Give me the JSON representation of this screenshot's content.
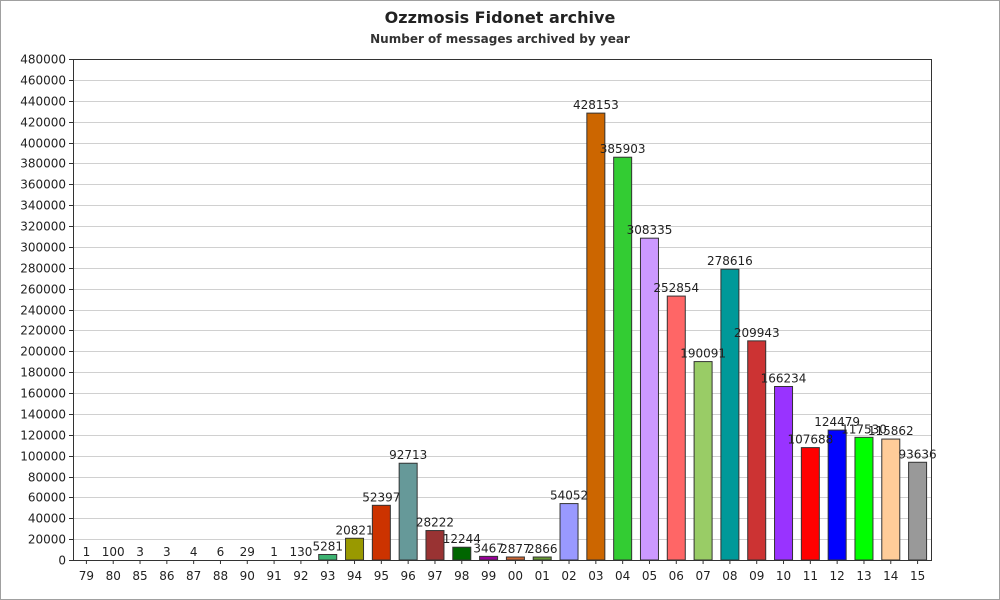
{
  "title": "Ozzmosis Fidonet archive",
  "subtitle": "Number of messages archived by year",
  "chart_data": {
    "type": "bar",
    "title": "Ozzmosis Fidonet archive",
    "subtitle": "Number of messages archived by year",
    "xlabel": "",
    "ylabel": "",
    "ylim": [
      0,
      480000
    ],
    "yticks": [
      0,
      20000,
      40000,
      60000,
      80000,
      100000,
      120000,
      140000,
      160000,
      180000,
      200000,
      220000,
      240000,
      260000,
      280000,
      300000,
      320000,
      340000,
      360000,
      380000,
      400000,
      420000,
      440000,
      460000,
      480000
    ],
    "grid": true,
    "categories": [
      "79",
      "80",
      "85",
      "86",
      "87",
      "88",
      "90",
      "91",
      "92",
      "93",
      "94",
      "95",
      "96",
      "97",
      "98",
      "99",
      "00",
      "01",
      "02",
      "03",
      "04",
      "05",
      "06",
      "07",
      "08",
      "09",
      "10",
      "11",
      "12",
      "13",
      "14",
      "15"
    ],
    "values": [
      1,
      100,
      3,
      3,
      4,
      6,
      29,
      1,
      130,
      5281,
      20821,
      52397,
      92713,
      28222,
      12244,
      3467,
      2877,
      2866,
      54052,
      428153,
      385903,
      308335,
      252854,
      190091,
      278616,
      209943,
      166234,
      107688,
      124479,
      117530,
      115862,
      93636
    ],
    "colors": [
      "#2e8b8b",
      "#2e8b8b",
      "#2e8b8b",
      "#2e8b8b",
      "#2e8b8b",
      "#2e8b8b",
      "#2e8b8b",
      "#2e8b8b",
      "#2e8b8b",
      "#3cb371",
      "#999900",
      "#cc3300",
      "#669999",
      "#993333",
      "#006600",
      "#990099",
      "#cc6633",
      "#669933",
      "#9999ff",
      "#cc6600",
      "#33cc33",
      "#cc99ff",
      "#ff6666",
      "#99cc66",
      "#009999",
      "#cc3333",
      "#9933ff",
      "#ff0000",
      "#0000ff",
      "#00ff00",
      "#ffcc99",
      "#999999"
    ]
  }
}
